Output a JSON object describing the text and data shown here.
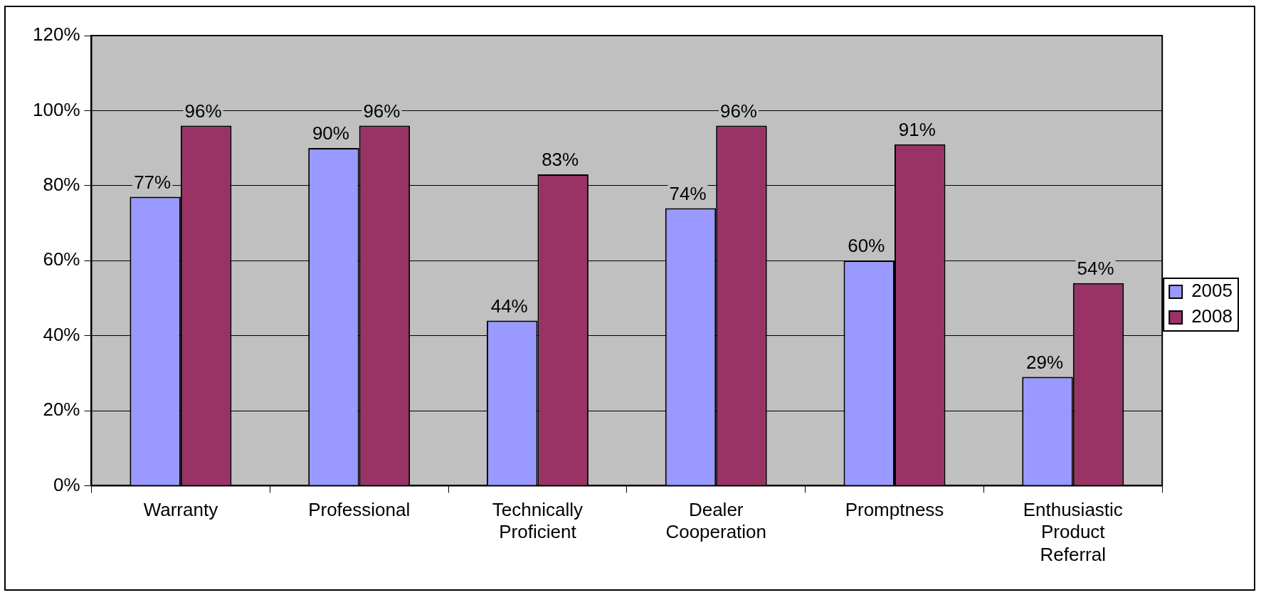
{
  "chart_data": {
    "type": "bar",
    "categories": [
      "Warranty",
      "Professional",
      "Technically Proficient",
      "Dealer Cooperation",
      "Promptness",
      "Enthusiastic Product Referral"
    ],
    "series": [
      {
        "name": "2005",
        "color": "#9999ff",
        "values": [
          77,
          90,
          44,
          74,
          60,
          29
        ]
      },
      {
        "name": "2008",
        "color": "#993366",
        "values": [
          96,
          96,
          83,
          96,
          91,
          54
        ]
      }
    ],
    "ylim": [
      0,
      120
    ],
    "yticks": [
      {
        "value": 0,
        "label": "0%"
      },
      {
        "value": 20,
        "label": "20%"
      },
      {
        "value": 40,
        "label": "40%"
      },
      {
        "value": 60,
        "label": "60%"
      },
      {
        "value": 80,
        "label": "80%"
      },
      {
        "value": 100,
        "label": "100%"
      },
      {
        "value": 120,
        "label": "120%"
      }
    ],
    "value_labels": [
      [
        "77%",
        "90%",
        "44%",
        "74%",
        "60%",
        "29%"
      ],
      [
        "96%",
        "96%",
        "83%",
        "96%",
        "91%",
        "54%"
      ]
    ],
    "grid": "y",
    "legend": "right"
  }
}
